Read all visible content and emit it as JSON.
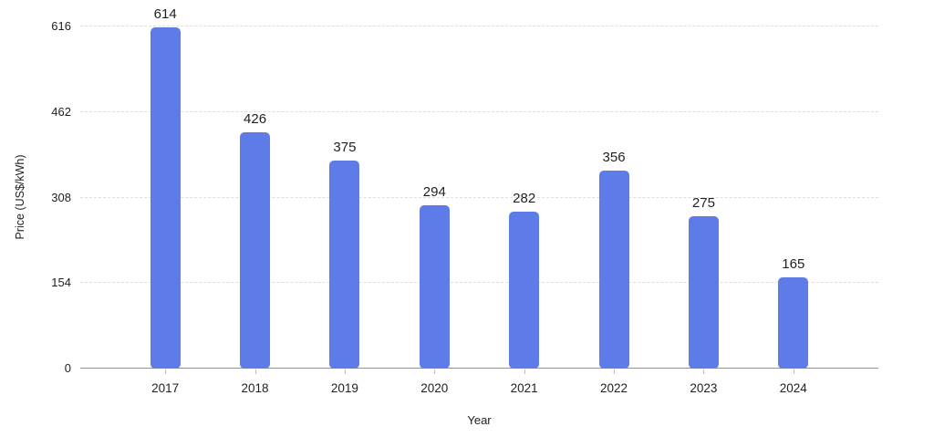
{
  "chart_data": {
    "type": "bar",
    "categories": [
      "2017",
      "2018",
      "2019",
      "2020",
      "2021",
      "2022",
      "2023",
      "2024"
    ],
    "values": [
      614,
      426,
      375,
      294,
      282,
      356,
      275,
      165
    ],
    "title": "",
    "xlabel": "Year",
    "ylabel": "Price (US$/kWh)",
    "ylim": [
      0,
      616
    ],
    "y_ticks": [
      0,
      154,
      308,
      462,
      616
    ],
    "legend": "none",
    "grid": "horizontal-dashed",
    "data_labels": true
  },
  "colors": {
    "bar": "#5e7ce8",
    "axis_line": "#919191",
    "gridline": "#dedede",
    "tick_mark": "#bdbdbd",
    "label_text": "#212121",
    "background": "#ffffff"
  }
}
